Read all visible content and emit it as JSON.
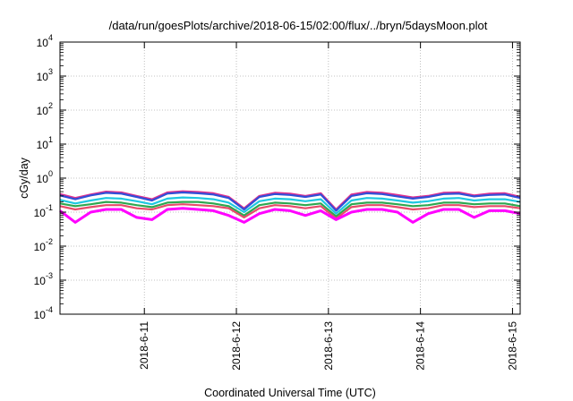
{
  "chart_data": {
    "type": "line",
    "title": "/data/run/goesPlots/archive/2018-06-15/02:00/flux/../bryn/5daysMoon.plot",
    "xlabel": "Coordinated Universal Time (UTC)",
    "ylabel": "cGy/day",
    "yscale": "log",
    "ylim": [
      0.0001,
      10000
    ],
    "xlim": [
      "2018-06-10 02:00",
      "2018-06-15 02:00"
    ],
    "grid": true,
    "legend": "none",
    "x_tick_labels": [
      "2018-6-11",
      "2018-6-12",
      "2018-6-13",
      "2018-6-14",
      "2018-6-15"
    ],
    "y_tick_labels": [
      {
        "base": "10",
        "exp": "-4"
      },
      {
        "base": "10",
        "exp": "-3"
      },
      {
        "base": "10",
        "exp": "-2"
      },
      {
        "base": "10",
        "exp": "-1"
      },
      {
        "base": "10",
        "exp": "0"
      },
      {
        "base": "10",
        "exp": "1"
      },
      {
        "base": "10",
        "exp": "2"
      },
      {
        "base": "10",
        "exp": "3"
      },
      {
        "base": "10",
        "exp": "4"
      }
    ],
    "x": [
      "2018-06-10 02:00",
      "2018-06-10 06:00",
      "2018-06-10 10:00",
      "2018-06-10 14:00",
      "2018-06-10 18:00",
      "2018-06-10 22:00",
      "2018-06-11 02:00",
      "2018-06-11 06:00",
      "2018-06-11 10:00",
      "2018-06-11 14:00",
      "2018-06-11 18:00",
      "2018-06-11 22:00",
      "2018-06-12 02:00",
      "2018-06-12 06:00",
      "2018-06-12 10:00",
      "2018-06-12 14:00",
      "2018-06-12 18:00",
      "2018-06-12 22:00",
      "2018-06-13 02:00",
      "2018-06-13 06:00",
      "2018-06-13 10:00",
      "2018-06-13 14:00",
      "2018-06-13 18:00",
      "2018-06-13 22:00",
      "2018-06-14 02:00",
      "2018-06-14 06:00",
      "2018-06-14 10:00",
      "2018-06-14 14:00",
      "2018-06-14 18:00",
      "2018-06-14 22:00",
      "2018-06-15 02:00"
    ],
    "series": [
      {
        "color": "#e0308f",
        "values": [
          0.34,
          0.26,
          0.33,
          0.4,
          0.38,
          0.3,
          0.24,
          0.38,
          0.41,
          0.39,
          0.36,
          0.28,
          0.13,
          0.3,
          0.37,
          0.35,
          0.3,
          0.36,
          0.12,
          0.33,
          0.39,
          0.37,
          0.32,
          0.27,
          0.3,
          0.37,
          0.38,
          0.31,
          0.35,
          0.36,
          0.28
        ]
      },
      {
        "color": "#2f4fd8",
        "values": [
          0.31,
          0.24,
          0.31,
          0.37,
          0.35,
          0.28,
          0.22,
          0.35,
          0.38,
          0.36,
          0.33,
          0.26,
          0.12,
          0.28,
          0.34,
          0.32,
          0.28,
          0.33,
          0.11,
          0.3,
          0.36,
          0.34,
          0.29,
          0.25,
          0.28,
          0.34,
          0.35,
          0.29,
          0.32,
          0.33,
          0.26
        ]
      },
      {
        "color": "#1ec8e0",
        "values": [
          0.23,
          0.18,
          0.22,
          0.26,
          0.25,
          0.21,
          0.17,
          0.25,
          0.27,
          0.26,
          0.24,
          0.19,
          0.1,
          0.21,
          0.25,
          0.24,
          0.21,
          0.24,
          0.09,
          0.22,
          0.26,
          0.25,
          0.22,
          0.19,
          0.21,
          0.25,
          0.26,
          0.22,
          0.24,
          0.24,
          0.2
        ]
      },
      {
        "color": "#2da850",
        "values": [
          0.18,
          0.15,
          0.17,
          0.2,
          0.19,
          0.16,
          0.14,
          0.19,
          0.2,
          0.2,
          0.18,
          0.15,
          0.08,
          0.16,
          0.19,
          0.18,
          0.16,
          0.18,
          0.075,
          0.17,
          0.19,
          0.19,
          0.17,
          0.15,
          0.16,
          0.19,
          0.19,
          0.17,
          0.18,
          0.18,
          0.15
        ]
      },
      {
        "color": "#e84b6a",
        "values": [
          0.15,
          0.12,
          0.14,
          0.16,
          0.16,
          0.13,
          0.12,
          0.16,
          0.17,
          0.16,
          0.15,
          0.13,
          0.07,
          0.13,
          0.16,
          0.15,
          0.13,
          0.15,
          0.065,
          0.14,
          0.16,
          0.16,
          0.14,
          0.12,
          0.13,
          0.16,
          0.16,
          0.14,
          0.15,
          0.15,
          0.13
        ]
      },
      {
        "color": "#ff00ff",
        "values": [
          0.11,
          0.05,
          0.1,
          0.12,
          0.12,
          0.07,
          0.06,
          0.12,
          0.13,
          0.12,
          0.11,
          0.08,
          0.05,
          0.09,
          0.12,
          0.11,
          0.08,
          0.11,
          0.06,
          0.1,
          0.12,
          0.12,
          0.1,
          0.05,
          0.09,
          0.12,
          0.12,
          0.07,
          0.11,
          0.11,
          0.09
        ]
      }
    ]
  }
}
